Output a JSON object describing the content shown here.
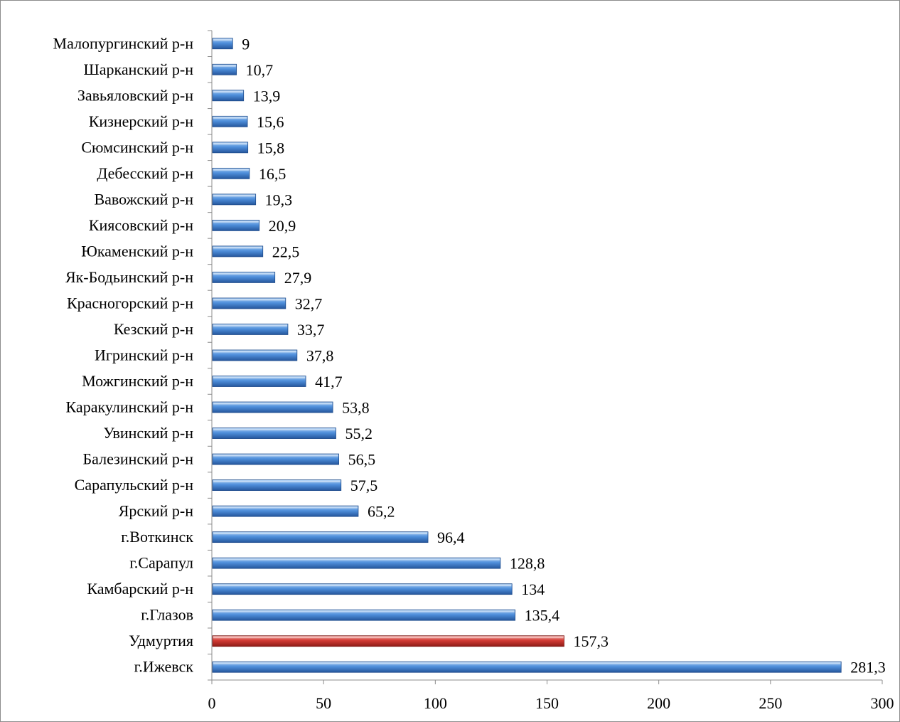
{
  "chart_data": {
    "type": "bar",
    "orientation": "horizontal",
    "title": "",
    "xlabel": "",
    "ylabel": "",
    "xlim": [
      0,
      300
    ],
    "ticks": [
      "0",
      "50",
      "100",
      "150",
      "200",
      "250",
      "300"
    ],
    "tick_values": [
      0,
      50,
      100,
      150,
      200,
      250,
      300
    ],
    "grid": false,
    "legend": "none",
    "colors": {
      "default": "#4a86d0",
      "highlight": "#c0312b"
    },
    "bars": [
      {
        "category": "Малопургинский р-н",
        "value": 9,
        "label": "9",
        "highlight": false
      },
      {
        "category": "Шарканский р-н",
        "value": 10.7,
        "label": "10,7",
        "highlight": false
      },
      {
        "category": "Завьяловский р-н",
        "value": 13.9,
        "label": "13,9",
        "highlight": false
      },
      {
        "category": "Кизнерский р-н",
        "value": 15.6,
        "label": "15,6",
        "highlight": false
      },
      {
        "category": "Сюмсинский р-н",
        "value": 15.8,
        "label": "15,8",
        "highlight": false
      },
      {
        "category": "Дебесский р-н",
        "value": 16.5,
        "label": "16,5",
        "highlight": false
      },
      {
        "category": "Вавожский р-н",
        "value": 19.3,
        "label": "19,3",
        "highlight": false
      },
      {
        "category": "Киясовский р-н",
        "value": 20.9,
        "label": "20,9",
        "highlight": false
      },
      {
        "category": "Юкаменский р-н",
        "value": 22.5,
        "label": "22,5",
        "highlight": false
      },
      {
        "category": "Як-Бодьинский р-н",
        "value": 27.9,
        "label": "27,9",
        "highlight": false
      },
      {
        "category": "Красногорский р-н",
        "value": 32.7,
        "label": "32,7",
        "highlight": false
      },
      {
        "category": "Кезский р-н",
        "value": 33.7,
        "label": "33,7",
        "highlight": false
      },
      {
        "category": "Игринский р-н",
        "value": 37.8,
        "label": "37,8",
        "highlight": false
      },
      {
        "category": "Можгинский р-н",
        "value": 41.7,
        "label": "41,7",
        "highlight": false
      },
      {
        "category": "Каракулинский р-н",
        "value": 53.8,
        "label": "53,8",
        "highlight": false
      },
      {
        "category": "Увинский р-н",
        "value": 55.2,
        "label": "55,2",
        "highlight": false
      },
      {
        "category": "Балезинский р-н",
        "value": 56.5,
        "label": "56,5",
        "highlight": false
      },
      {
        "category": "Сарапульский р-н",
        "value": 57.5,
        "label": "57,5",
        "highlight": false
      },
      {
        "category": "Ярский р-н",
        "value": 65.2,
        "label": "65,2",
        "highlight": false
      },
      {
        "category": "г.Воткинск",
        "value": 96.4,
        "label": "96,4",
        "highlight": false
      },
      {
        "category": "г.Сарапул",
        "value": 128.8,
        "label": "128,8",
        "highlight": false
      },
      {
        "category": "Камбарский р-н",
        "value": 134,
        "label": "134",
        "highlight": false
      },
      {
        "category": "г.Глазов",
        "value": 135.4,
        "label": "135,4",
        "highlight": false
      },
      {
        "category": "Удмуртия",
        "value": 157.3,
        "label": "157,3",
        "highlight": true
      },
      {
        "category": "г.Ижевск",
        "value": 281.3,
        "label": "281,3",
        "highlight": false
      }
    ]
  }
}
